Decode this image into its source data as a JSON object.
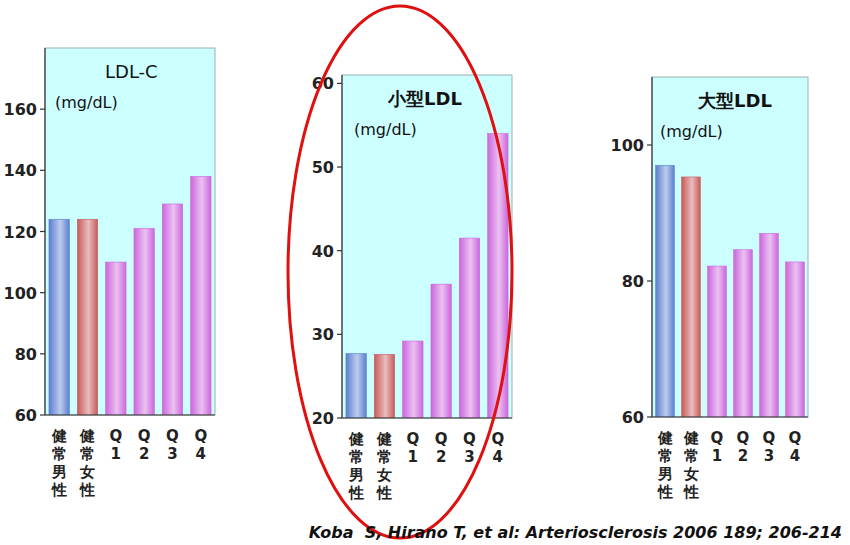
{
  "chart_data": [
    {
      "type": "bar",
      "title": "LDL-C",
      "subtitle": "(mg/dL)",
      "categories": [
        "健常男性",
        "健常女性",
        "Q1",
        "Q2",
        "Q3",
        "Q4"
      ],
      "values": [
        124,
        124,
        110,
        121,
        129,
        138
      ],
      "colors": [
        "#5b7fd0",
        "#c85a5a",
        "#cc66dd",
        "#cc66dd",
        "#cc66dd",
        "#cc66dd"
      ],
      "ylim": [
        60,
        180
      ],
      "yticks": [
        60,
        80,
        100,
        120,
        140,
        160
      ],
      "grid": false
    },
    {
      "type": "bar",
      "title": "小型LDL",
      "subtitle": "(mg/dL)",
      "categories": [
        "健常男性",
        "健常女性",
        "Q1",
        "Q2",
        "Q3",
        "Q4"
      ],
      "values": [
        27.7,
        27.6,
        29.2,
        36,
        41.5,
        54
      ],
      "colors": [
        "#5b7fd0",
        "#c85a5a",
        "#cc66dd",
        "#cc66dd",
        "#cc66dd",
        "#cc66dd"
      ],
      "ylim": [
        20,
        61
      ],
      "yticks": [
        20,
        30,
        40,
        50,
        60
      ],
      "grid": false
    },
    {
      "type": "bar",
      "title": "大型LDL",
      "subtitle": "(mg/dL)",
      "categories": [
        "健常男性",
        "健常女性",
        "Q1",
        "Q2",
        "Q3",
        "Q4"
      ],
      "values": [
        97,
        95.3,
        82.2,
        84.6,
        87,
        82.8
      ],
      "colors": [
        "#5b7fd0",
        "#c85a5a",
        "#cc66dd",
        "#cc66dd",
        "#cc66dd",
        "#cc66dd"
      ],
      "ylim": [
        60,
        110
      ],
      "yticks": [
        60,
        80,
        100
      ],
      "grid": false
    }
  ],
  "caption": "Koba  S, Hirano T, et al: Arteriosclerosis 2006 189; 206-214"
}
